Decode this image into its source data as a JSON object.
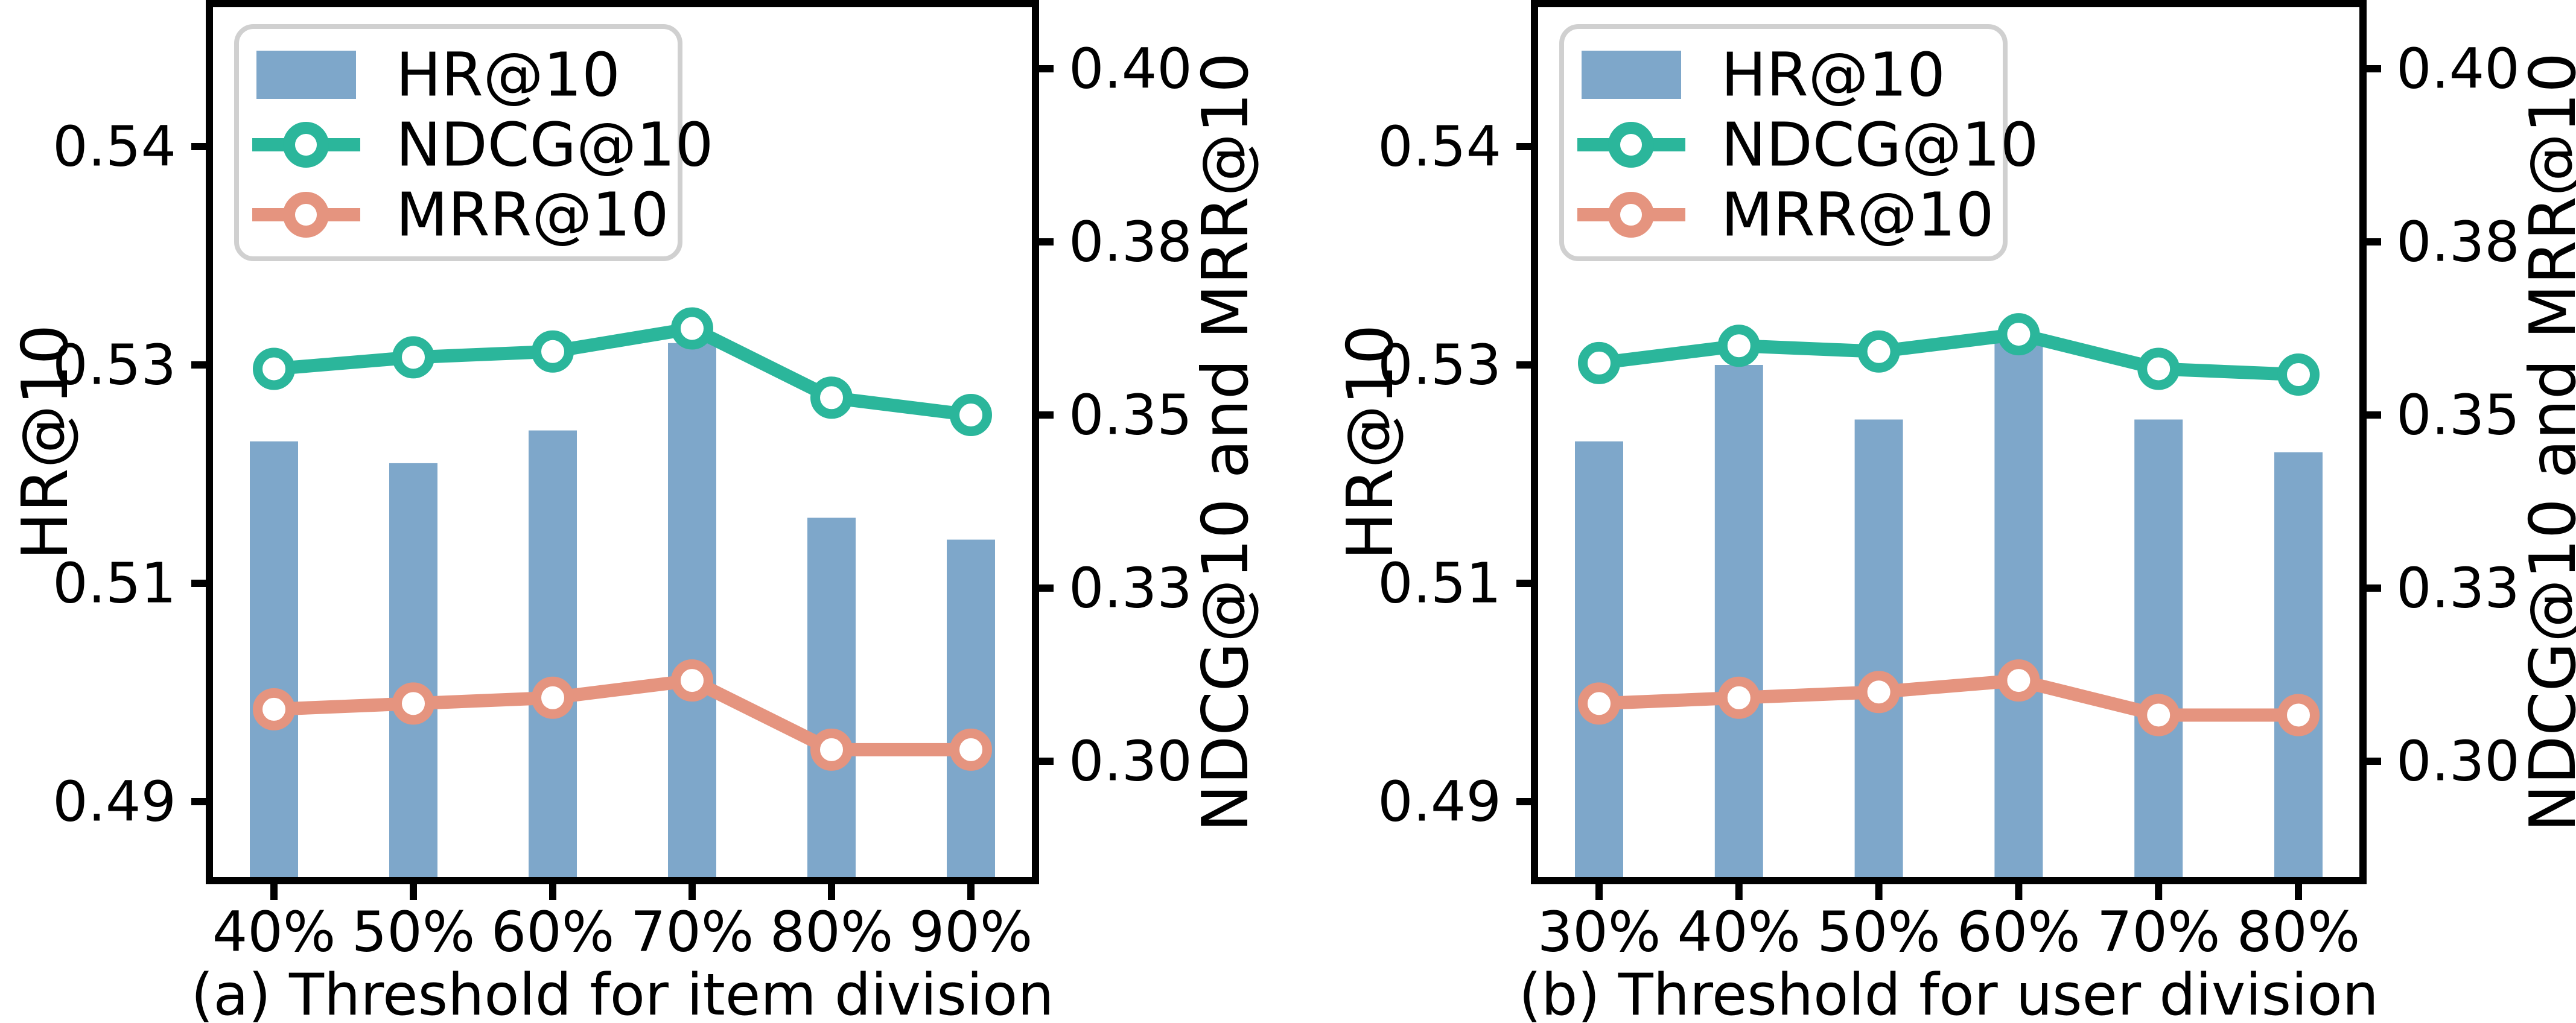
{
  "figure": {
    "background": "#ffffff",
    "text_color": "#000000",
    "spine_color": "#000000",
    "legend_border_color": "#d0d0d0"
  },
  "chart_data": [
    {
      "type": "bar+line",
      "caption": "(a) Threshold for item division",
      "categories": [
        "40%",
        "50%",
        "60%",
        "70%",
        "80%",
        "90%"
      ],
      "left_axis": {
        "label": "HR@10",
        "tick_labels": [
          "0.54",
          "0.53",
          "0.51",
          "0.49"
        ],
        "tick_values": [
          0.54,
          0.53,
          0.51,
          0.49
        ]
      },
      "right_axis": {
        "label": "NDCG@10 and MRR@10",
        "tick_labels": [
          "0.40",
          "0.38",
          "0.35",
          "0.33",
          "0.30"
        ],
        "tick_values": [
          0.4,
          0.38,
          0.35,
          0.33,
          0.3
        ]
      },
      "legend": {
        "position": "upper left",
        "entries": [
          "HR@10",
          "NDCG@10",
          "MRR@10"
        ]
      },
      "grid": "off",
      "series": [
        {
          "name": "HR@10",
          "type": "bar",
          "axis": "left",
          "color": "#7ea7ca",
          "values": [
            0.523,
            0.521,
            0.524,
            0.531,
            0.516,
            0.514
          ]
        },
        {
          "name": "NDCG@10",
          "type": "line",
          "axis": "right",
          "color": "#2bb69b",
          "marker": "open-circle",
          "values": [
            0.358,
            0.36,
            0.361,
            0.365,
            0.353,
            0.35
          ]
        },
        {
          "name": "MRR@10",
          "type": "line",
          "axis": "right",
          "color": "#e5947f",
          "marker": "open-circle",
          "values": [
            0.309,
            0.31,
            0.311,
            0.314,
            0.302,
            0.302
          ]
        }
      ]
    },
    {
      "type": "bar+line",
      "caption": "(b) Threshold for user division",
      "categories": [
        "30%",
        "40%",
        "50%",
        "60%",
        "70%",
        "80%"
      ],
      "left_axis": {
        "label": "HR@10",
        "tick_labels": [
          "0.54",
          "0.53",
          "0.51",
          "0.49"
        ],
        "tick_values": [
          0.54,
          0.53,
          0.51,
          0.49
        ]
      },
      "right_axis": {
        "label": "NDCG@10 and MRR@10",
        "tick_labels": [
          "0.40",
          "0.38",
          "0.35",
          "0.33",
          "0.30"
        ],
        "tick_values": [
          0.4,
          0.38,
          0.35,
          0.33,
          0.3
        ]
      },
      "legend": {
        "position": "upper left",
        "entries": [
          "HR@10",
          "NDCG@10",
          "MRR@10"
        ]
      },
      "grid": "off",
      "series": [
        {
          "name": "HR@10",
          "type": "bar",
          "axis": "left",
          "color": "#7ea7ca",
          "values": [
            0.523,
            0.53,
            0.525,
            0.531,
            0.525,
            0.522
          ]
        },
        {
          "name": "NDCG@10",
          "type": "line",
          "axis": "right",
          "color": "#2bb69b",
          "marker": "open-circle",
          "values": [
            0.359,
            0.362,
            0.361,
            0.364,
            0.358,
            0.357
          ]
        },
        {
          "name": "MRR@10",
          "type": "line",
          "axis": "right",
          "color": "#e5947f",
          "marker": "open-circle",
          "values": [
            0.31,
            0.311,
            0.312,
            0.314,
            0.308,
            0.308
          ]
        }
      ]
    }
  ]
}
